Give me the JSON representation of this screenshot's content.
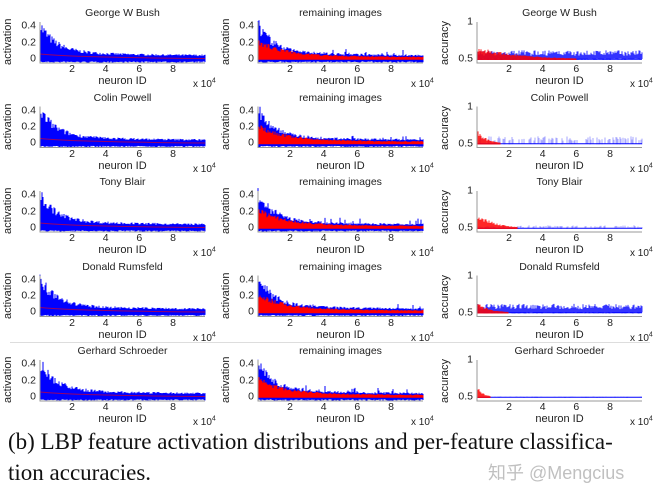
{
  "chart_data": {
    "type": "grid",
    "rows": [
      "George W Bush",
      "Colin Powell",
      "Tony Blair",
      "Donald Rumsfeld",
      "Gerhard Schroeder"
    ],
    "columns": [
      {
        "kind": "activation",
        "type": "area",
        "title_source": "row",
        "ylabel": "activation",
        "xlabel": "neuron ID",
        "xscale": "x 10",
        "xscale_exp": "4",
        "yticks": [
          "0",
          "0.2",
          "0.4"
        ],
        "ylim": [
          -0.05,
          0.45
        ],
        "xticks": [
          "2",
          "4",
          "6",
          "8"
        ],
        "xlim": [
          0.1,
          9.9
        ],
        "series_colors": [
          "#0000ff",
          "#ff0000"
        ]
      },
      {
        "kind": "activation",
        "type": "area",
        "title": "remaining images",
        "ylabel": "activation",
        "xlabel": "neuron ID",
        "xscale": "x 10",
        "xscale_exp": "4",
        "yticks": [
          "0",
          "0.2",
          "0.4"
        ],
        "ylim": [
          -0.05,
          0.45
        ],
        "xticks": [
          "2",
          "4",
          "6",
          "8"
        ],
        "xlim": [
          0.1,
          9.9
        ],
        "series_colors": [
          "#0000ff",
          "#ff0000"
        ]
      },
      {
        "kind": "accuracy",
        "type": "scatter",
        "title_source": "row",
        "ylabel": "accuracy",
        "xlabel": "neuron ID",
        "xscale": "x 10",
        "xscale_exp": "4",
        "yticks": [
          "0.5",
          "1"
        ],
        "ylim": [
          0.45,
          1.0
        ],
        "xticks": [
          "2",
          "4",
          "6",
          "8"
        ],
        "xlim": [
          0.1,
          9.9
        ],
        "series_colors": [
          "#0000ff",
          "#ff0000"
        ]
      }
    ],
    "grid": false,
    "legend": "none"
  },
  "caption": {
    "line1": "(b) LBP feature activation distributions and per-feature classifica-",
    "line2": "tion accuracies."
  },
  "watermark": "知乎 @Mengcius"
}
